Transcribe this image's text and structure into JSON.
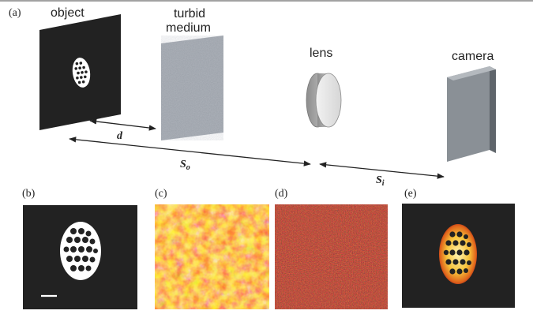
{
  "figure": {
    "panels": {
      "a": "(a)",
      "b": "(b)",
      "c": "(c)",
      "d": "(d)",
      "e": "(e)"
    },
    "labels": {
      "object": "object",
      "turbid_line1": "turbid",
      "turbid_line2": "medium",
      "lens": "lens",
      "camera": "camera"
    },
    "distances": {
      "d": "d",
      "so": "S",
      "so_sub": "o",
      "si": "S",
      "si_sub": "i"
    },
    "colors": {
      "dark_panel": "#222222",
      "hot_yellow": "#f7d64a",
      "hot_red": "#c4231a",
      "speckle_dark": "#4a0f0f",
      "grey": "#8a9096"
    }
  }
}
